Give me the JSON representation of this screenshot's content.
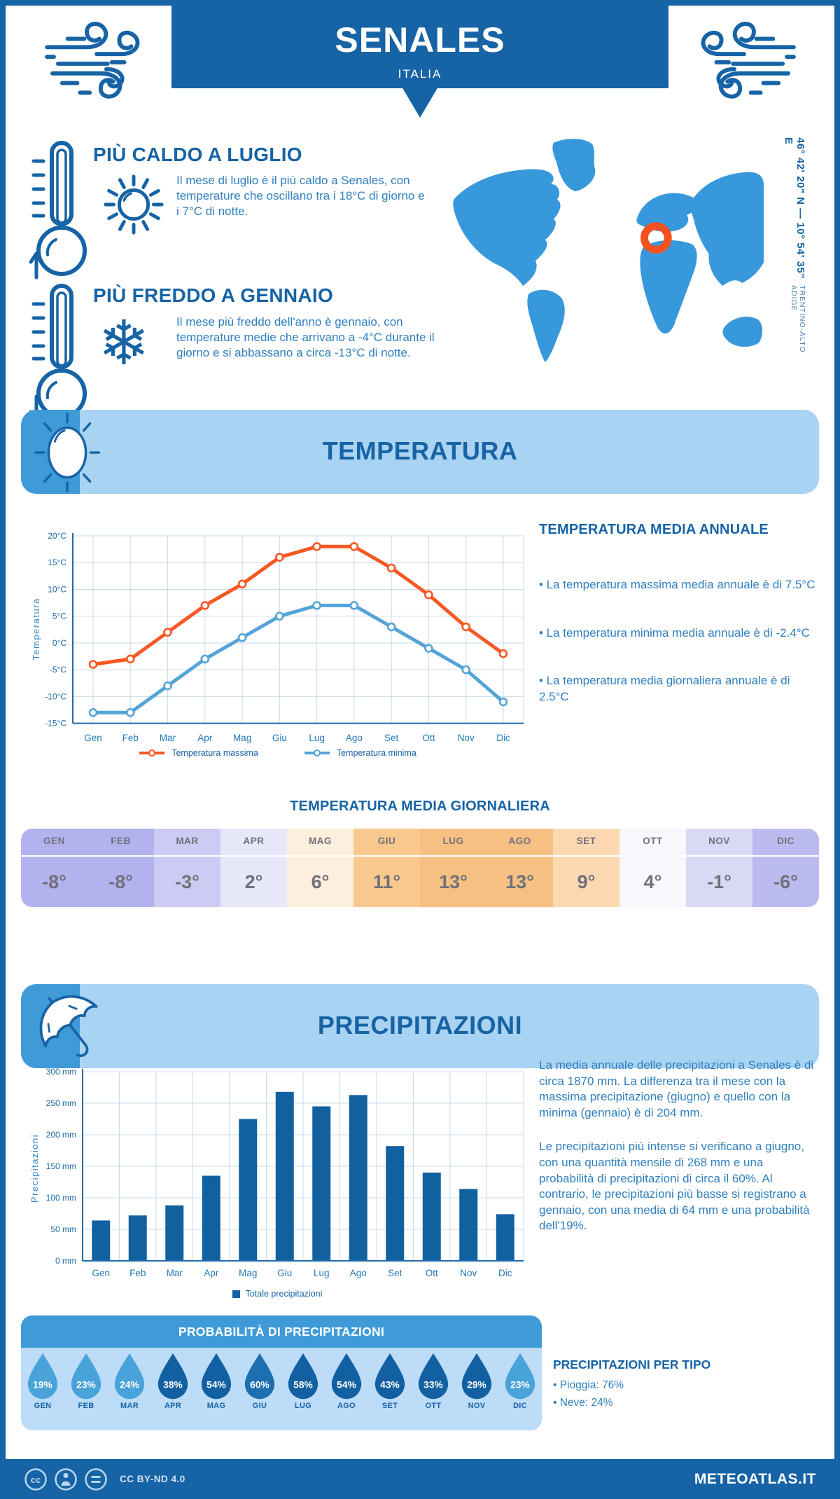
{
  "header": {
    "title": "SENALES",
    "subtitle": "ITALIA"
  },
  "highlights": {
    "caldo": {
      "title": "PIÙ CALDO A LUGLIO",
      "text": "Il mese di luglio è il più caldo a Senales, con temperature che oscillano tra i 18°C di giorno e i 7°C di notte."
    },
    "freddo": {
      "title": "PIÙ FREDDO A GENNAIO",
      "text": "Il mese più freddo dell'anno è gennaio, con temperature medie che arrivano a -4°C durante il giorno e si abbassano a circa -13°C di notte."
    }
  },
  "location": {
    "coordinates": "46° 42' 20\" N — 10° 54' 35\" E",
    "region": "TRENTINO-ALTO ADIGE",
    "marker_color": "#f4511e",
    "map_color": "#3798db"
  },
  "sections": {
    "temperature": "TEMPERATURA",
    "precipitation": "PRECIPITAZIONI"
  },
  "chart_data": [
    {
      "type": "line",
      "title": "Temperatura",
      "categories": [
        "Gen",
        "Feb",
        "Mar",
        "Apr",
        "Mag",
        "Giu",
        "Lug",
        "Ago",
        "Set",
        "Ott",
        "Nov",
        "Dic"
      ],
      "ylabel": "Temperatura",
      "ylim": [
        -15,
        20
      ],
      "ytick_step": 5,
      "ytick_suffix": "°C",
      "grid": true,
      "legend_position": "bottom",
      "series": [
        {
          "name": "Temperatura massima",
          "color": "#f75723",
          "values": [
            -4,
            -3,
            2,
            7,
            11,
            16,
            18,
            18,
            14,
            9,
            3,
            -2
          ]
        },
        {
          "name": "Temperatura minima",
          "color": "#54a4d9",
          "values": [
            -13,
            -13,
            -8,
            -3,
            1,
            5,
            7,
            7,
            3,
            -1,
            -5,
            -11
          ]
        }
      ]
    },
    {
      "type": "bar",
      "title": "Precipitazioni",
      "categories": [
        "Gen",
        "Feb",
        "Mar",
        "Apr",
        "Mag",
        "Giu",
        "Lug",
        "Ago",
        "Set",
        "Ott",
        "Nov",
        "Dic"
      ],
      "ylabel": "Precipitazioni",
      "ylim": [
        0,
        300
      ],
      "ytick_step": 50,
      "ytick_suffix": " mm",
      "grid": true,
      "legend_position": "bottom",
      "series_name": "Totale precipitazioni",
      "color": "#1160a0",
      "values": [
        64,
        72,
        88,
        135,
        225,
        268,
        245,
        263,
        182,
        140,
        114,
        74
      ]
    }
  ],
  "annual": {
    "title": "TEMPERATURA MEDIA ANNUALE",
    "bullets": [
      "• La temperatura massima media annuale è di 7.5°C",
      "• La temperatura minima media annuale è di -2.4°C",
      "• La temperatura media giornaliera annuale è di 2.5°C"
    ]
  },
  "daily_table": {
    "title": "TEMPERATURA MEDIA GIORNALIERA",
    "months": [
      {
        "label": "GEN",
        "value": "-8°",
        "color": "#b2b2ee"
      },
      {
        "label": "FEB",
        "value": "-8°",
        "color": "#b2b2ee"
      },
      {
        "label": "MAR",
        "value": "-3°",
        "color": "#cbcbf3"
      },
      {
        "label": "APR",
        "value": "2°",
        "color": "#e7e7fa"
      },
      {
        "label": "MAG",
        "value": "6°",
        "color": "#fdeedd"
      },
      {
        "label": "GIU",
        "value": "11°",
        "color": "#f9c88e"
      },
      {
        "label": "LUG",
        "value": "13°",
        "color": "#f7c083"
      },
      {
        "label": "AGO",
        "value": "13°",
        "color": "#f7c083"
      },
      {
        "label": "SET",
        "value": "9°",
        "color": "#fbd8b2"
      },
      {
        "label": "OTT",
        "value": "4°",
        "color": "#f8f8fc"
      },
      {
        "label": "NOV",
        "value": "-1°",
        "color": "#d9d9f6"
      },
      {
        "label": "DIC",
        "value": "-6°",
        "color": "#bbbbf0"
      }
    ]
  },
  "precip_text": {
    "p1": "La media annuale delle precipitazioni a Senales è di circa 1870 mm. La differenza tra il mese con la massima precipitazione (giugno) e quello con la minima (gennaio) è di 204 mm.",
    "p2": "Le precipitazioni più intense si verificano a giugno, con una quantità mensile di 268 mm e una probabilità di precipitazioni di circa il 60%. Al contrario, le precipitazioni più basse si registrano a gennaio, con una media di 64 mm e una probabilità dell'19%."
  },
  "probability": {
    "title": "PROBABILITÀ DI PRECIPITAZIONI",
    "months": [
      {
        "label": "GEN",
        "value": "19%",
        "color": "#4aa2da"
      },
      {
        "label": "FEB",
        "value": "23%",
        "color": "#4aa2da"
      },
      {
        "label": "MAR",
        "value": "24%",
        "color": "#4aa2da"
      },
      {
        "label": "APR",
        "value": "38%",
        "color": "#1260a1"
      },
      {
        "label": "MAG",
        "value": "54%",
        "color": "#1260a1"
      },
      {
        "label": "GIU",
        "value": "60%",
        "color": "#1e6fb0"
      },
      {
        "label": "LUG",
        "value": "58%",
        "color": "#1260a1"
      },
      {
        "label": "AGO",
        "value": "54%",
        "color": "#1260a1"
      },
      {
        "label": "SET",
        "value": "43%",
        "color": "#1260a1"
      },
      {
        "label": "OTT",
        "value": "33%",
        "color": "#1260a1"
      },
      {
        "label": "NOV",
        "value": "29%",
        "color": "#1260a1"
      },
      {
        "label": "DIC",
        "value": "23%",
        "color": "#4aa2da"
      }
    ]
  },
  "precip_type": {
    "title": "PRECIPITAZIONI PER TIPO",
    "bullets": [
      "• Pioggia: 76%",
      "• Neve: 24%"
    ]
  },
  "legend": {
    "tmax": "Temperatura massima",
    "tmin": "Temperatura minima",
    "precip": "Totale precipitazioni"
  },
  "footer": {
    "license": "CC BY-ND 4.0",
    "brand": "METEOATLAS.IT"
  },
  "colors": {
    "dark_blue": "#1663a5",
    "tab_blue": "#3f9ad8",
    "banner_light": "#a9d3f2",
    "prob_body": "#bcdcf8",
    "grid": "#c9d9ea",
    "axis": "#1e6aa9",
    "tick_text": "#1e6aa9",
    "month_text": "#2277b5"
  }
}
